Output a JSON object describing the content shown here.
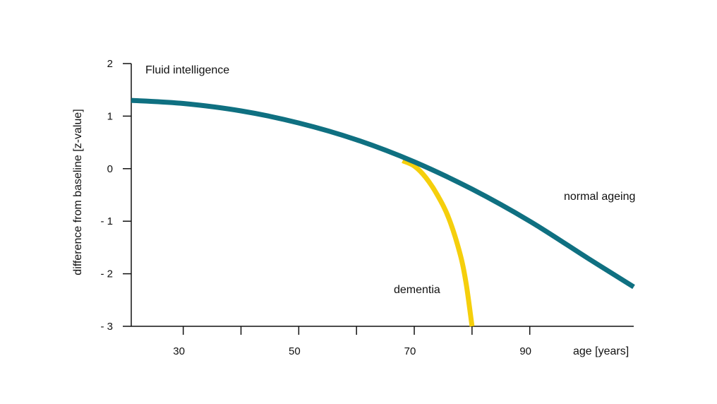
{
  "chart_data": {
    "type": "line",
    "title": "Fluid intelligence",
    "xlabel": "age [years]",
    "ylabel": "difference from baseline [z-value]",
    "xlim": [
      21,
      108
    ],
    "ylim": [
      -3,
      2
    ],
    "x_ticks": [
      30,
      40,
      50,
      60,
      70,
      80,
      90
    ],
    "x_tick_labels": [
      "30",
      "",
      "50",
      "",
      "70",
      "",
      "90"
    ],
    "y_ticks": [
      2,
      1,
      0,
      -1,
      -2,
      -3
    ],
    "y_tick_labels": [
      "2",
      "1",
      "0",
      "- 1",
      "- 2",
      "- 3"
    ],
    "grid": false,
    "legend": "none",
    "series": [
      {
        "name": "normal ageing",
        "color": "#0f7081",
        "x": [
          21,
          30,
          40,
          50,
          60,
          70,
          80,
          90,
          100,
          108
        ],
        "y": [
          1.3,
          1.24,
          1.1,
          0.87,
          0.55,
          0.13,
          -0.39,
          -1.0,
          -1.7,
          -2.25
        ]
      },
      {
        "name": "dementia",
        "color": "#f5cf0c",
        "x": [
          68,
          70,
          72,
          74,
          76,
          78,
          79,
          80
        ],
        "y": [
          0.15,
          0.05,
          -0.17,
          -0.5,
          -0.95,
          -1.65,
          -2.2,
          -3.0
        ]
      }
    ]
  }
}
